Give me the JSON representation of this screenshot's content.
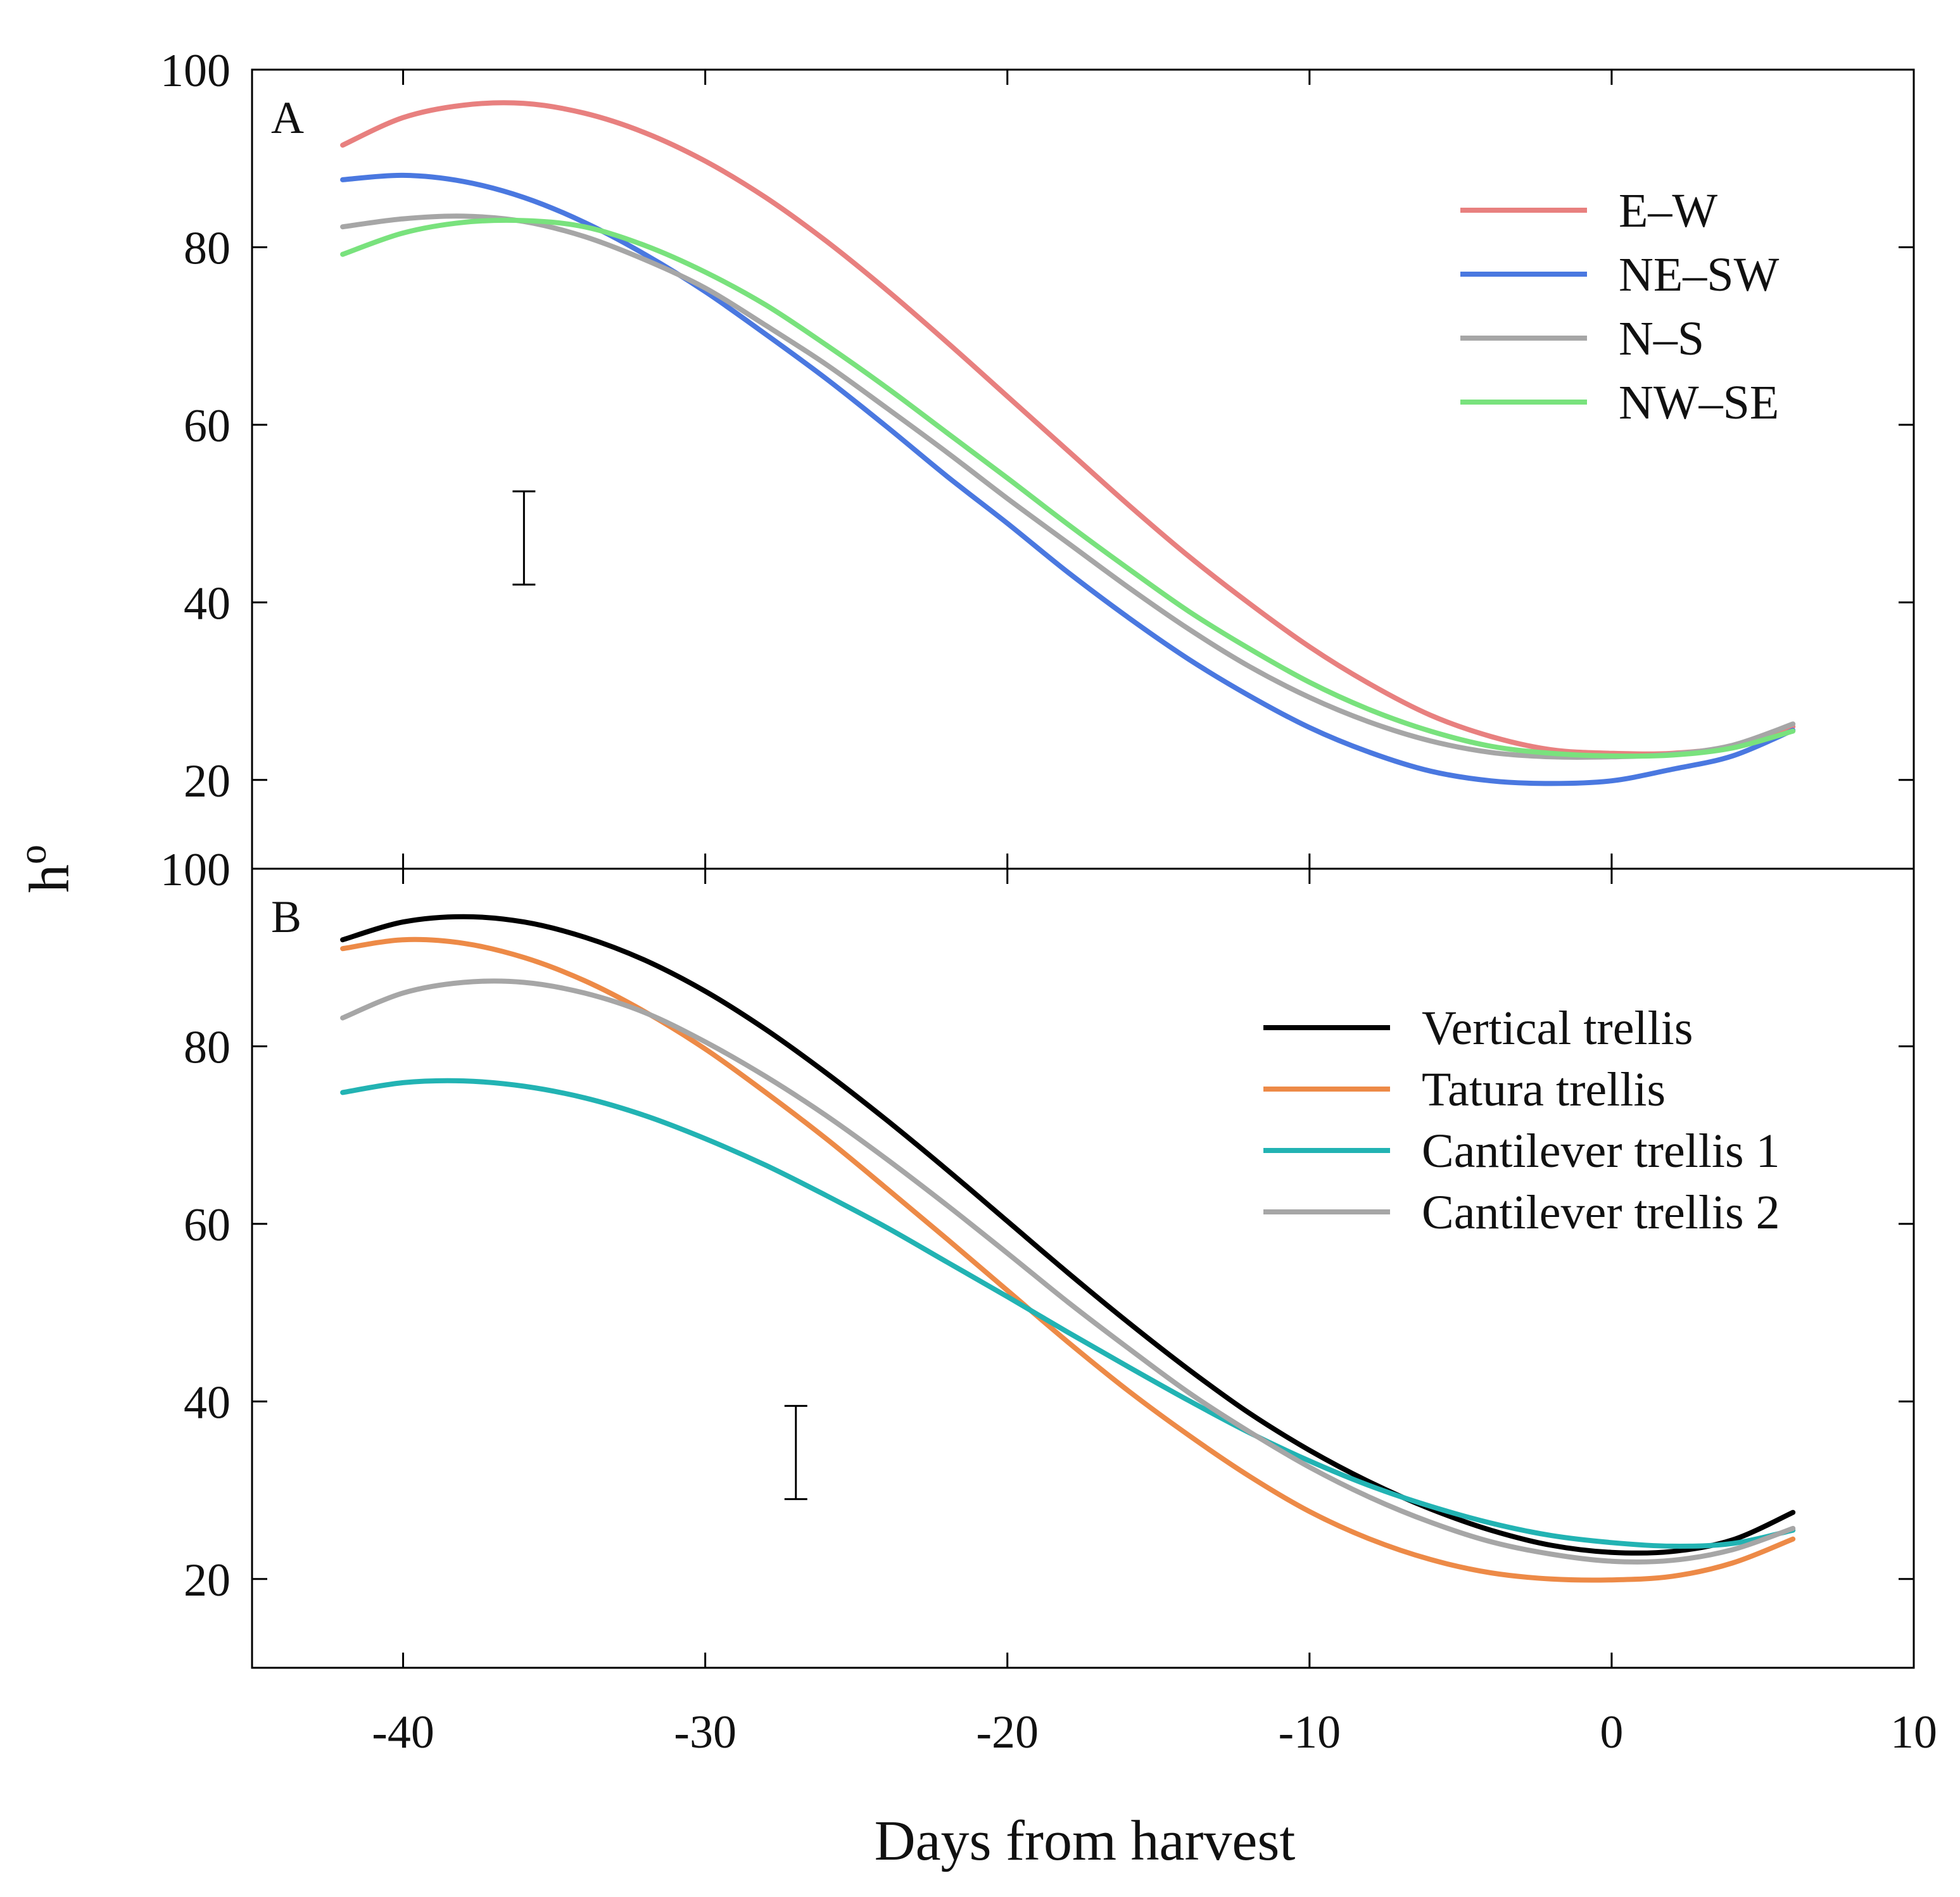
{
  "ylabel_base": "h",
  "ylabel_sup": "o",
  "xlabel": "Days from harvest",
  "chart_data": [
    {
      "type": "line",
      "panel": "A",
      "xlim": [
        -45,
        10
      ],
      "ylim": [
        10,
        100
      ],
      "xticks": [
        -40,
        -30,
        -20,
        -10,
        0,
        10
      ],
      "yticks": [
        20,
        40,
        60,
        80,
        100
      ],
      "grid": false,
      "legend_position": "top-right",
      "error_bar": {
        "x": -36,
        "low": 42,
        "high": 52.5
      },
      "series": [
        {
          "name": "E–W",
          "color": "#e8807f",
          "x": [
            -42,
            -40,
            -38,
            -36,
            -34,
            -32,
            -30,
            -28,
            -26,
            -24,
            -22,
            -20,
            -18,
            -16,
            -14,
            -12,
            -10,
            -8,
            -6,
            -4,
            -2,
            0,
            2,
            4,
            6
          ],
          "y": [
            91.5,
            94.6,
            96.0,
            96.2,
            95.1,
            92.9,
            89.7,
            85.6,
            80.7,
            75.2,
            69.3,
            63.2,
            57.1,
            51.0,
            45.2,
            39.9,
            35.0,
            30.8,
            27.3,
            24.9,
            23.4,
            23.0,
            23.0,
            23.8,
            26.0
          ]
        },
        {
          "name": "NE–SW",
          "color": "#4a78e0",
          "x": [
            -42,
            -40,
            -38,
            -36,
            -34,
            -32,
            -30,
            -28,
            -26,
            -24,
            -22,
            -20,
            -18,
            -16,
            -14,
            -12,
            -10,
            -8,
            -6,
            -4,
            -2,
            0,
            2,
            4,
            6
          ],
          "y": [
            87.6,
            88.1,
            87.4,
            85.6,
            82.8,
            79.2,
            75.0,
            70.2,
            65.2,
            59.8,
            54.2,
            48.9,
            43.4,
            38.3,
            33.6,
            29.5,
            25.9,
            23.1,
            21.0,
            19.9,
            19.6,
            19.9,
            21.2,
            22.7,
            25.6
          ]
        },
        {
          "name": "N–S",
          "color": "#a6a6a6",
          "x": [
            -42,
            -40,
            -38,
            -36,
            -34,
            -32,
            -30,
            -28,
            -26,
            -24,
            -22,
            -20,
            -18,
            -16,
            -14,
            -12,
            -10,
            -8,
            -6,
            -4,
            -2,
            0,
            2,
            4,
            6
          ],
          "y": [
            82.3,
            83.2,
            83.5,
            82.9,
            81.2,
            78.6,
            75.4,
            71.2,
            66.8,
            61.9,
            56.9,
            51.7,
            46.7,
            41.7,
            37.0,
            32.8,
            29.3,
            26.5,
            24.4,
            23.1,
            22.6,
            22.6,
            22.9,
            23.9,
            26.3
          ]
        },
        {
          "name": "NW–SE",
          "color": "#79e27d",
          "x": [
            -42,
            -40,
            -38,
            -36,
            -34,
            -32,
            -30,
            -28,
            -26,
            -24,
            -22,
            -20,
            -18,
            -16,
            -14,
            -12,
            -10,
            -8,
            -6,
            -4,
            -2,
            0,
            2,
            4,
            6
          ],
          "y": [
            79.2,
            81.6,
            82.8,
            83.0,
            82.3,
            80.2,
            77.2,
            73.5,
            69.0,
            64.2,
            59.1,
            54.0,
            48.8,
            43.8,
            39.0,
            34.8,
            31.0,
            27.9,
            25.5,
            23.8,
            23.0,
            22.7,
            22.8,
            23.6,
            25.5
          ]
        }
      ]
    },
    {
      "type": "line",
      "panel": "B",
      "xlim": [
        -45,
        10
      ],
      "ylim": [
        10,
        100
      ],
      "xticks": [
        -40,
        -30,
        -20,
        -10,
        0,
        10
      ],
      "yticks": [
        20,
        40,
        60,
        80,
        100
      ],
      "grid": false,
      "legend_position": "top-right",
      "error_bar": {
        "x": -27,
        "low": 29,
        "high": 39.5
      },
      "series": [
        {
          "name": "Vertical trellis",
          "color": "#000000",
          "x": [
            -42,
            -40,
            -38,
            -36,
            -34,
            -32,
            -30,
            -28,
            -26,
            -24,
            -22,
            -20,
            -18,
            -16,
            -14,
            -12,
            -10,
            -8,
            -6,
            -4,
            -2,
            0,
            2,
            4,
            6
          ],
          "y": [
            92.0,
            94.0,
            94.6,
            94.0,
            92.3,
            89.7,
            86.2,
            81.9,
            77.0,
            71.7,
            66.1,
            60.3,
            54.5,
            48.9,
            43.6,
            38.7,
            34.5,
            30.9,
            27.9,
            25.5,
            23.8,
            23.0,
            23.1,
            24.4,
            27.5
          ]
        },
        {
          "name": "Tatura trellis",
          "color": "#ed8a47",
          "x": [
            -42,
            -40,
            -38,
            -36,
            -34,
            -32,
            -30,
            -28,
            -26,
            -24,
            -22,
            -20,
            -18,
            -16,
            -14,
            -12,
            -10,
            -8,
            -6,
            -4,
            -2,
            0,
            2,
            4,
            6
          ],
          "y": [
            91.0,
            92.0,
            91.6,
            90.0,
            87.4,
            83.9,
            79.7,
            74.8,
            69.6,
            64.0,
            58.3,
            52.5,
            46.7,
            41.2,
            36.2,
            31.6,
            27.6,
            24.5,
            22.2,
            20.7,
            20.0,
            19.9,
            20.3,
            21.8,
            24.5
          ]
        },
        {
          "name": "Cantilever trellis 1",
          "color": "#22b3b3",
          "x": [
            -42,
            -40,
            -38,
            -36,
            -34,
            -32,
            -30,
            -28,
            -26,
            -24,
            -22,
            -20,
            -18,
            -16,
            -14,
            -12,
            -10,
            -8,
            -6,
            -4,
            -2,
            0,
            2,
            4,
            6
          ],
          "y": [
            74.8,
            75.9,
            76.1,
            75.5,
            74.2,
            72.2,
            69.6,
            66.6,
            63.2,
            59.6,
            55.7,
            51.8,
            47.8,
            43.9,
            40.1,
            36.5,
            33.3,
            30.5,
            28.2,
            26.3,
            24.9,
            24.1,
            23.7,
            24.0,
            25.5
          ]
        },
        {
          "name": "Cantilever trellis 2",
          "color": "#a6a6a6",
          "x": [
            -42,
            -40,
            -38,
            -36,
            -34,
            -32,
            -30,
            -28,
            -26,
            -24,
            -22,
            -20,
            -18,
            -16,
            -14,
            -12,
            -10,
            -8,
            -6,
            -4,
            -2,
            0,
            2,
            4,
            6
          ],
          "y": [
            83.2,
            86.0,
            87.2,
            87.2,
            86.0,
            83.8,
            80.5,
            76.6,
            72.2,
            67.3,
            62.1,
            56.7,
            51.2,
            46.0,
            41.0,
            36.6,
            32.6,
            29.2,
            26.4,
            24.2,
            22.8,
            22.0,
            22.1,
            23.3,
            25.7
          ]
        }
      ]
    }
  ]
}
